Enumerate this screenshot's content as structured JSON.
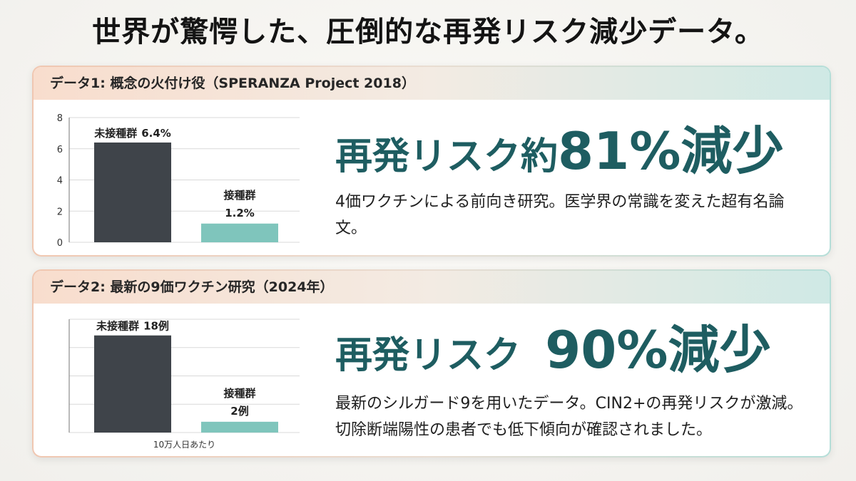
{
  "title": "世界が驚愕した、圧倒的な再発リスク減少データ。",
  "theme": {
    "headline": "#1e5d61"
  },
  "cards": [
    {
      "header": "データ1: 概念の火付け役（SPERANZA Project 2018）",
      "headline_prefix": "再発リスク約",
      "headline_value": "81%減少",
      "description": "4価ワクチンによる前向き研究。医学界の常識を変えた超有名論文。"
    },
    {
      "header": "データ2: 最新の9価ワクチン研究（2024年）",
      "headline_prefix": "再発リスク ",
      "headline_value": "90%減少",
      "description": "最新のシルガード9を用いたデータ。CIN2+の再発リスクが激減。切除断端陽性の患者でも低下傾向が確認されました。"
    }
  ],
  "chart_data": [
    {
      "type": "bar",
      "categories": [
        "未接種群",
        "接種群"
      ],
      "values": [
        6.4,
        1.2
      ],
      "value_labels": [
        "6.4%",
        "1.2%"
      ],
      "ylim": [
        0,
        8
      ],
      "yticks": [
        0,
        2,
        4,
        6,
        8
      ],
      "grid": true,
      "colors": [
        "#3f444a",
        "#7fc5bc"
      ]
    },
    {
      "type": "bar",
      "categories": [
        "未接種群",
        "接種群"
      ],
      "values": [
        18,
        2
      ],
      "value_labels": [
        "18例",
        "2例"
      ],
      "ylim": [
        0,
        21
      ],
      "yticks": [],
      "xlabel": "10万人日あたり",
      "grid": true,
      "colors": [
        "#3f444a",
        "#7fc5bc"
      ]
    }
  ]
}
